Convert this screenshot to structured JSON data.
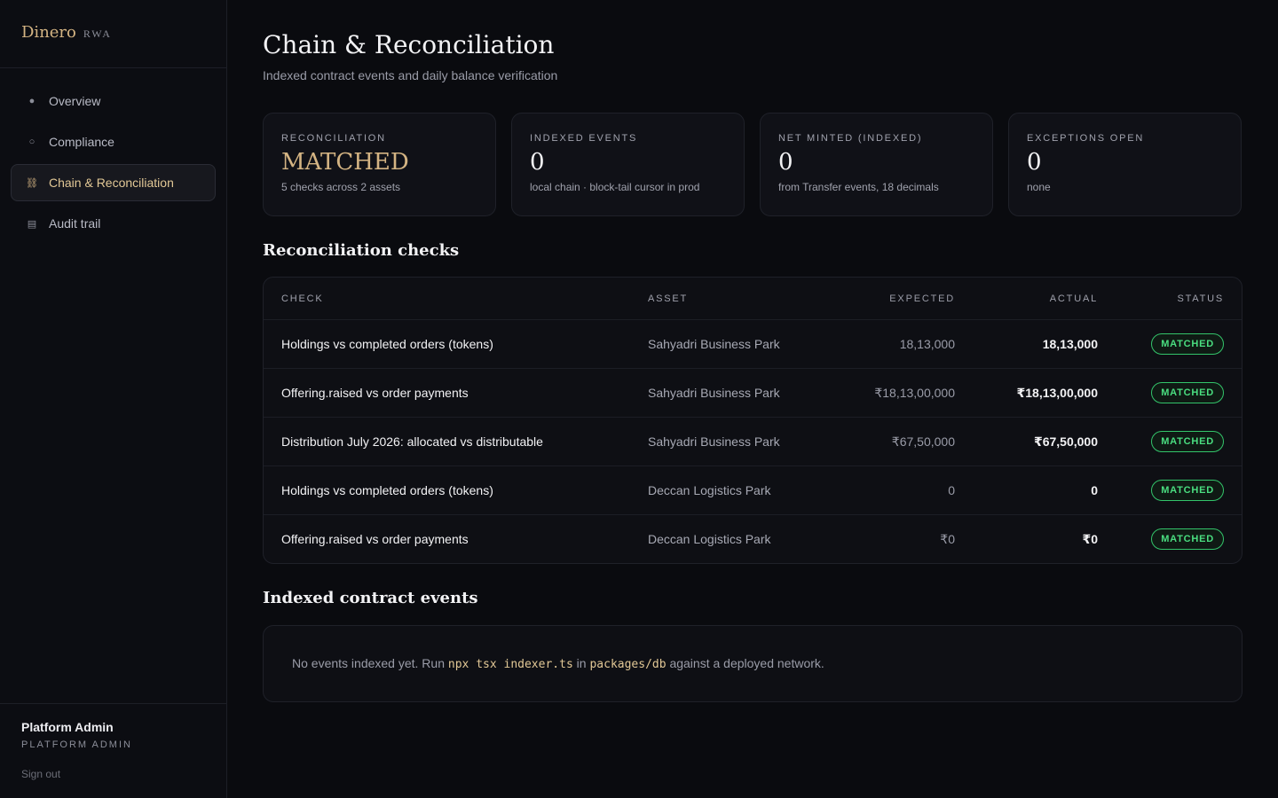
{
  "brand": {
    "name": "Dinero",
    "sub": "RWA"
  },
  "nav": [
    {
      "icon": "●",
      "label": "Overview",
      "active": false
    },
    {
      "icon": "○",
      "label": "Compliance",
      "active": false
    },
    {
      "icon": "⛓",
      "label": "Chain & Reconciliation",
      "active": true
    },
    {
      "icon": "▤",
      "label": "Audit trail",
      "active": false
    }
  ],
  "user": {
    "name": "Platform Admin",
    "role": "PLATFORM ADMIN",
    "signout": "Sign out"
  },
  "page": {
    "title": "Chain & Reconciliation",
    "subtitle": "Indexed contract events and daily balance verification"
  },
  "cards": [
    {
      "label": "RECONCILIATION",
      "value": "MATCHED",
      "note": "5 checks across 2 assets"
    },
    {
      "label": "INDEXED EVENTS",
      "value": "0",
      "note": "local chain · block-tail cursor in prod"
    },
    {
      "label": "NET MINTED (INDEXED)",
      "value": "0",
      "note": "from Transfer events, 18 decimals"
    },
    {
      "label": "EXCEPTIONS OPEN",
      "value": "0",
      "note": "none"
    }
  ],
  "checks": {
    "title": "Reconciliation checks",
    "columns": {
      "check": "CHECK",
      "asset": "ASSET",
      "expected": "EXPECTED",
      "actual": "ACTUAL",
      "status": "STATUS"
    },
    "rows": [
      {
        "check": "Holdings vs completed orders (tokens)",
        "asset": "Sahyadri Business Park",
        "expected": "18,13,000",
        "actual": "18,13,000",
        "status": "MATCHED"
      },
      {
        "check": "Offering.raised vs order payments",
        "asset": "Sahyadri Business Park",
        "expected": "₹18,13,00,000",
        "actual": "₹18,13,00,000",
        "status": "MATCHED"
      },
      {
        "check": "Distribution July 2026: allocated vs distributable",
        "asset": "Sahyadri Business Park",
        "expected": "₹67,50,000",
        "actual": "₹67,50,000",
        "status": "MATCHED"
      },
      {
        "check": "Holdings vs completed orders (tokens)",
        "asset": "Deccan Logistics Park",
        "expected": "0",
        "actual": "0",
        "status": "MATCHED"
      },
      {
        "check": "Offering.raised vs order payments",
        "asset": "Deccan Logistics Park",
        "expected": "₹0",
        "actual": "₹0",
        "status": "MATCHED"
      }
    ]
  },
  "events": {
    "title": "Indexed contract events",
    "msg_pre": "No events indexed yet. Run ",
    "cmd": "npx tsx indexer.ts",
    "msg_mid": " in ",
    "path": "packages/db",
    "msg_post": " against a deployed network."
  }
}
